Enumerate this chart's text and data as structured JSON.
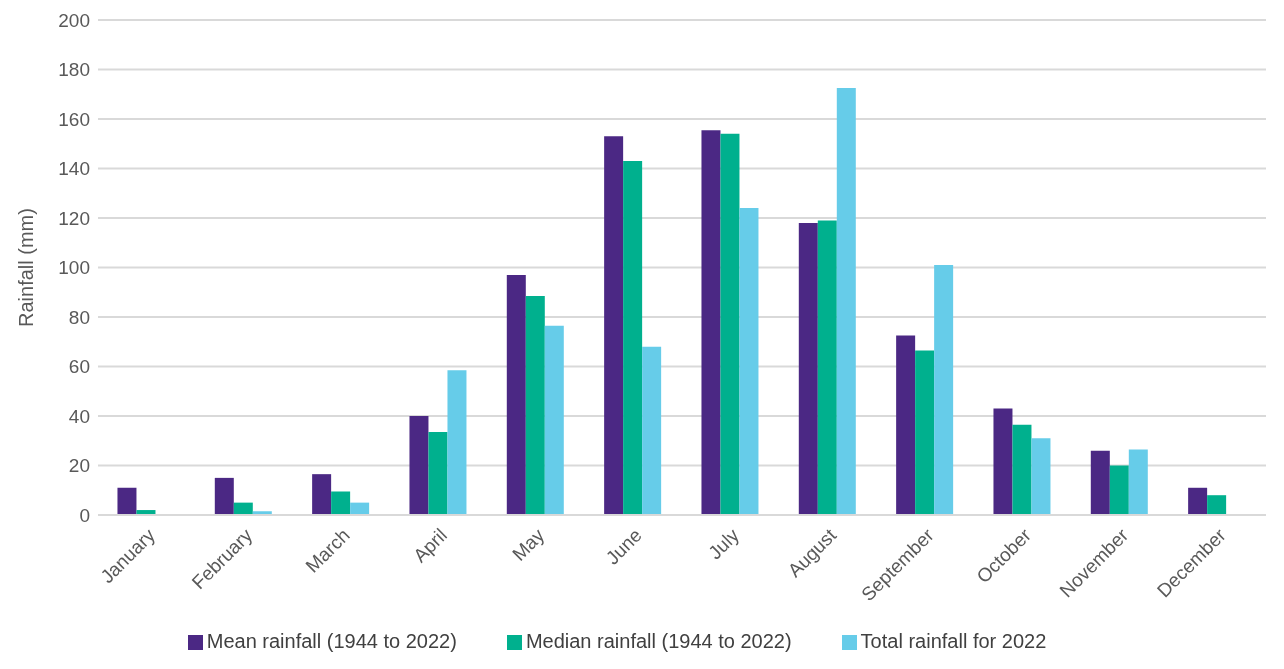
{
  "chart_data": {
    "type": "bar",
    "ylabel": "Rainfall (mm)",
    "categories": [
      "January",
      "February",
      "March",
      "April",
      "May",
      "June",
      "July",
      "August",
      "September",
      "October",
      "November",
      "December"
    ],
    "series": [
      {
        "name": "Mean rainfall (1944 to 2022)",
        "color": "#4b2884",
        "values": [
          11,
          15,
          16.5,
          40,
          97,
          153,
          155.5,
          118,
          72.5,
          43,
          26,
          11
        ]
      },
      {
        "name": "Median rainfall (1944 to 2022)",
        "color": "#00b08e",
        "values": [
          2,
          5,
          9.5,
          33.5,
          88.5,
          143,
          154,
          119,
          66.5,
          36.5,
          20,
          8
        ]
      },
      {
        "name": "Total rainfall for 2022",
        "color": "#66cce9",
        "values": [
          null,
          1.5,
          5,
          58.5,
          76.5,
          68,
          124,
          172.5,
          101,
          31,
          26.5,
          null
        ]
      }
    ],
    "ylim": [
      0,
      200
    ],
    "yticks": [
      0,
      20,
      40,
      60,
      80,
      100,
      120,
      140,
      160,
      180,
      200
    ],
    "grid": "y",
    "legend": "bottom"
  }
}
